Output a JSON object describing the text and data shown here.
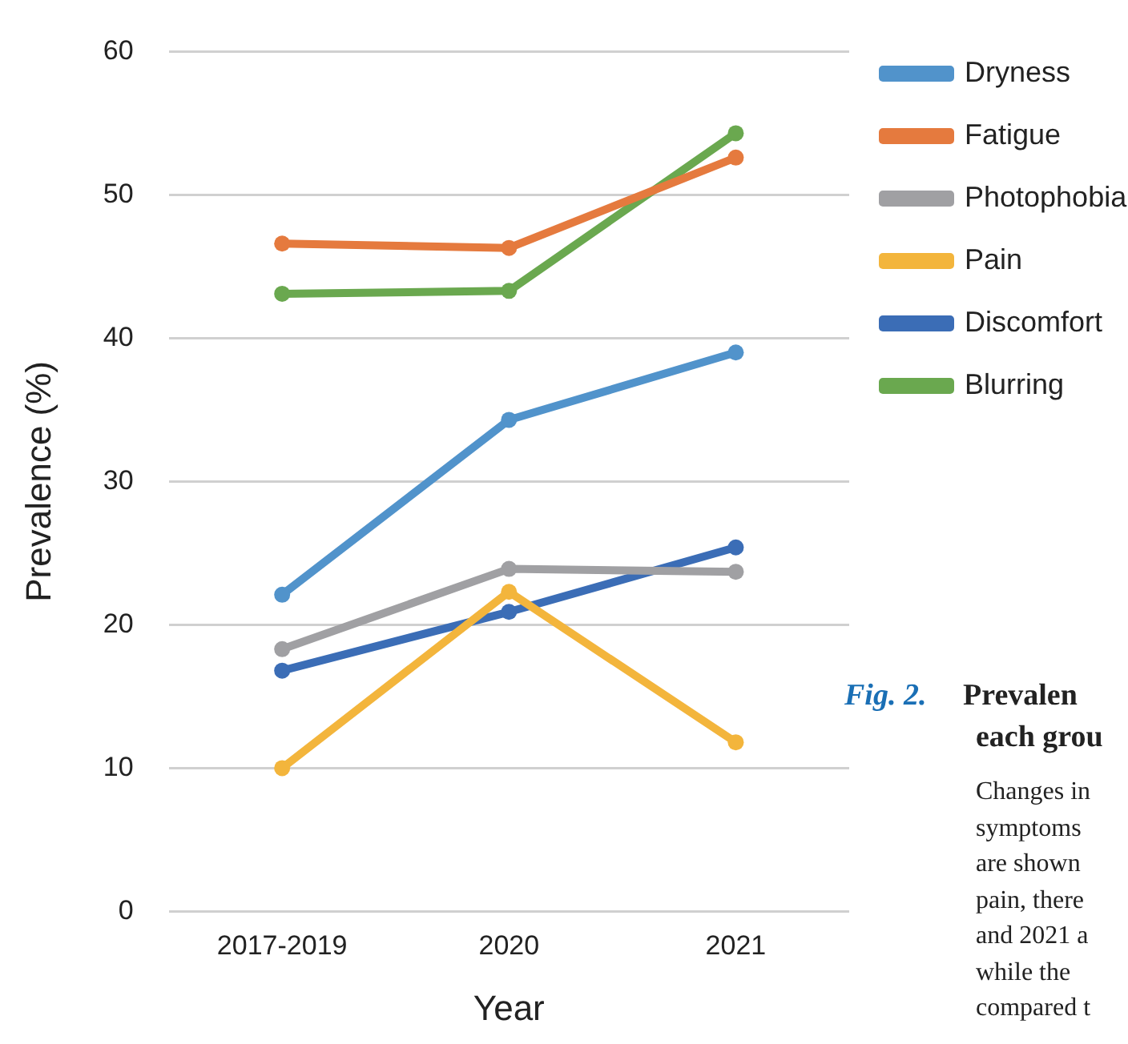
{
  "chart_data": {
    "type": "line",
    "xlabel": "Year",
    "ylabel": "Prevalence (%)",
    "categories": [
      "2017-2019",
      "2020",
      "2021"
    ],
    "series": [
      {
        "name": "Dryness",
        "color": "#5193cb",
        "values": [
          22.1,
          34.3,
          39.0
        ]
      },
      {
        "name": "Fatigue",
        "color": "#e57a3e",
        "values": [
          46.6,
          46.3,
          52.6
        ]
      },
      {
        "name": "Photophobia",
        "color": "#a0a0a3",
        "values": [
          18.3,
          23.9,
          23.7
        ]
      },
      {
        "name": "Pain",
        "color": "#f3b53c",
        "values": [
          10.0,
          22.3,
          11.8
        ]
      },
      {
        "name": "Discomfort",
        "color": "#3b6db6",
        "values": [
          16.8,
          20.9,
          25.4
        ]
      },
      {
        "name": "Blurring",
        "color": "#6aa84f",
        "values": [
          43.1,
          43.3,
          54.3
        ]
      }
    ],
    "ylim": [
      0,
      60
    ],
    "yticks": [
      0,
      10,
      20,
      30,
      40,
      50,
      60
    ],
    "grid": "y",
    "legend": "top right",
    "marker": "circle",
    "line_style": "solid",
    "annotations": [
      "Fig. 2.",
      "Prevalen",
      "each grou",
      "Changes in",
      "symptoms",
      "are shown",
      "pain, there",
      "and 2021 a",
      "while the",
      "compared t"
    ]
  }
}
